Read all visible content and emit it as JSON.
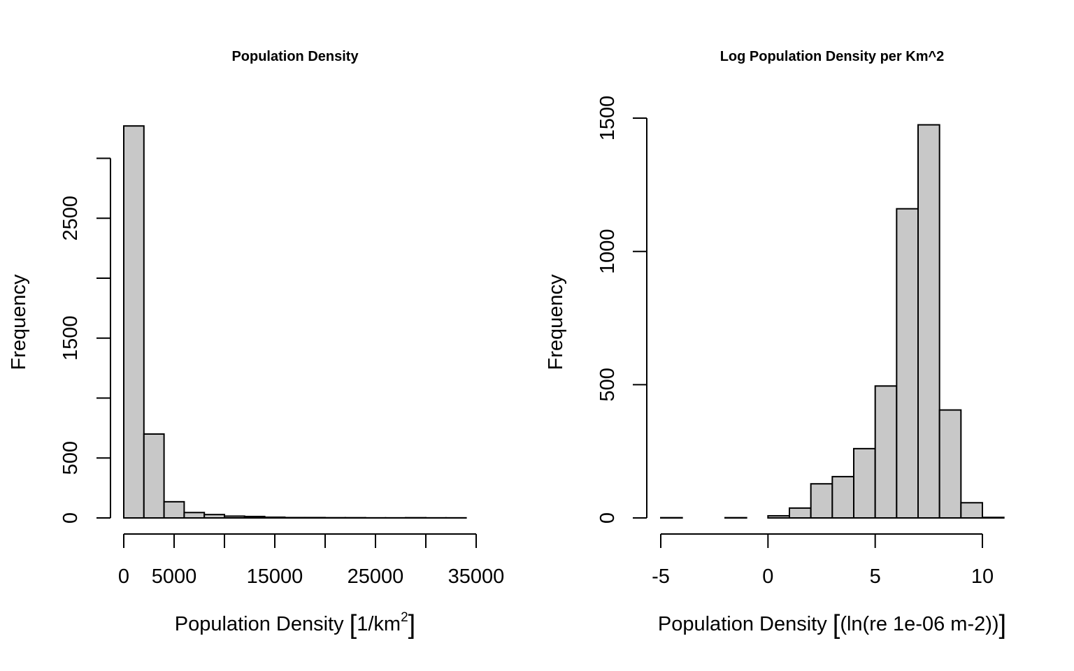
{
  "chart_data": [
    {
      "type": "bar",
      "title": "Population Density",
      "xlabel": "Population Density [1/km2]",
      "xlabel_parts": {
        "prefix": "Population Density ",
        "open": "[",
        "unit": "1/km",
        "sup": "2",
        "close": "]"
      },
      "ylabel": "Frequency",
      "xlim": [
        0,
        35000
      ],
      "ylim": [
        0,
        3000
      ],
      "x_ticks": [
        0,
        5000,
        10000,
        15000,
        20000,
        25000,
        30000,
        35000
      ],
      "x_tick_labels": [
        {
          "value": 0,
          "label": "0"
        },
        {
          "value": 5000,
          "label": "5000"
        },
        {
          "value": 15000,
          "label": "15000"
        },
        {
          "value": 25000,
          "label": "25000"
        },
        {
          "value": 35000,
          "label": "35000"
        }
      ],
      "y_ticks": [
        0,
        500,
        1000,
        1500,
        2000,
        2500,
        3000
      ],
      "y_tick_labels": [
        {
          "value": 0,
          "label": "0"
        },
        {
          "value": 500,
          "label": "500"
        },
        {
          "value": 1500,
          "label": "1500"
        },
        {
          "value": 2500,
          "label": "2500"
        }
      ],
      "bin_edges": [
        0,
        2000,
        4000,
        6000,
        8000,
        10000,
        12000,
        14000,
        16000,
        18000,
        20000,
        22000,
        24000,
        26000,
        28000,
        30000,
        32000,
        34000
      ],
      "values": [
        3270,
        700,
        135,
        45,
        28,
        15,
        12,
        6,
        3,
        3,
        2,
        2,
        1,
        1,
        2,
        1,
        1
      ],
      "grid": false,
      "bar_color": "#c8c8c8"
    },
    {
      "type": "bar",
      "title": "Log Population Density per Km^2",
      "xlabel": "Population Density [(ln(re 1e-06 m-2))]",
      "xlabel_parts": {
        "prefix": "Population Density ",
        "open": "[",
        "unit": "(ln(re 1e-06 m-2))",
        "sup": "",
        "close": "]"
      },
      "ylabel": "Frequency",
      "xlim": [
        -5,
        10
      ],
      "ylim": [
        0,
        1500
      ],
      "x_ticks": [
        -5,
        0,
        5,
        10
      ],
      "x_tick_labels": [
        {
          "value": -5,
          "label": "-5"
        },
        {
          "value": 0,
          "label": "0"
        },
        {
          "value": 5,
          "label": "5"
        },
        {
          "value": 10,
          "label": "10"
        }
      ],
      "y_ticks": [
        0,
        500,
        1000,
        1500
      ],
      "y_tick_labels": [
        {
          "value": 0,
          "label": "0"
        },
        {
          "value": 500,
          "label": "500"
        },
        {
          "value": 1000,
          "label": "1000"
        },
        {
          "value": 1500,
          "label": "1500"
        }
      ],
      "bin_edges": [
        -5,
        -4,
        -3,
        -2,
        -1,
        0,
        1,
        2,
        3,
        4,
        5,
        6,
        7,
        8,
        9,
        10,
        11
      ],
      "values": [
        1,
        0,
        0,
        1,
        0,
        8,
        37,
        128,
        155,
        260,
        495,
        1160,
        1475,
        405,
        57,
        2
      ],
      "grid": false,
      "bar_color": "#c8c8c8"
    }
  ]
}
